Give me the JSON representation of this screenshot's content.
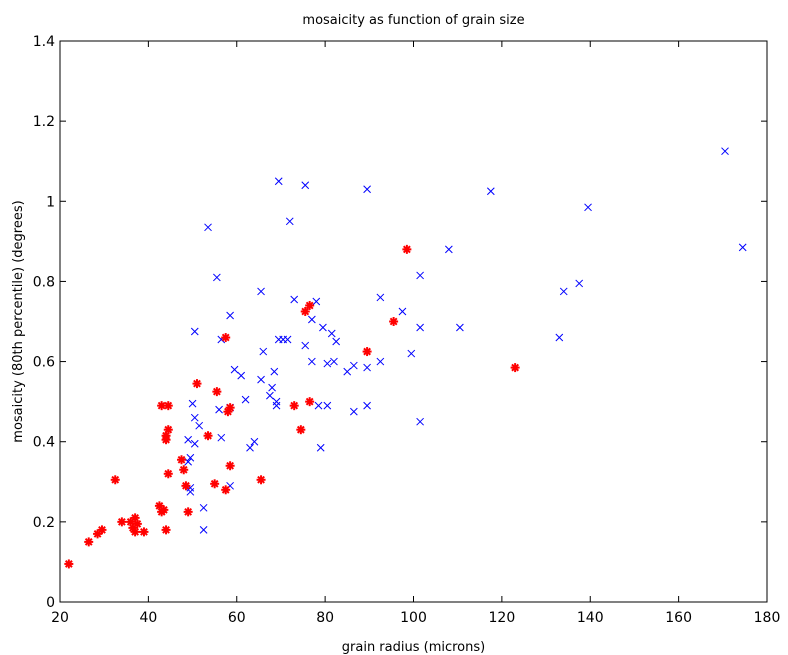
{
  "chart_data": {
    "type": "scatter",
    "title": "mosaicity as function of grain size",
    "xlabel": "grain radius (microns)",
    "ylabel": "mosaicity (80th percentile) (degrees)",
    "xlim": [
      20,
      180
    ],
    "ylim": [
      0,
      1.4
    ],
    "xticks": [
      "20",
      "40",
      "60",
      "80",
      "100",
      "120",
      "140",
      "160",
      "180"
    ],
    "yticks": [
      "0",
      "0.2",
      "0.4",
      "0.6",
      "0.8",
      "1",
      "1.2",
      "1.4"
    ],
    "grid": false,
    "legend": "none",
    "series": [
      {
        "marker": "x",
        "color": "#0000ff",
        "points": [
          [
            69.5,
            1.05
          ],
          [
            75.5,
            1.04
          ],
          [
            89.5,
            1.03
          ],
          [
            117.5,
            1.025
          ],
          [
            170.5,
            1.125
          ],
          [
            139.5,
            0.985
          ],
          [
            72,
            0.95
          ],
          [
            53.5,
            0.935
          ],
          [
            174.5,
            0.885
          ],
          [
            108,
            0.88
          ],
          [
            101.5,
            0.815
          ],
          [
            55.5,
            0.81
          ],
          [
            137.5,
            0.795
          ],
          [
            134,
            0.775
          ],
          [
            65.5,
            0.775
          ],
          [
            92.5,
            0.76
          ],
          [
            73,
            0.755
          ],
          [
            78,
            0.75
          ],
          [
            97.5,
            0.725
          ],
          [
            58.5,
            0.715
          ],
          [
            77,
            0.705
          ],
          [
            79.5,
            0.685
          ],
          [
            101.5,
            0.685
          ],
          [
            110.5,
            0.685
          ],
          [
            50.5,
            0.675
          ],
          [
            81.5,
            0.67
          ],
          [
            133,
            0.66
          ],
          [
            69.5,
            0.655
          ],
          [
            70.5,
            0.655
          ],
          [
            71.5,
            0.655
          ],
          [
            82.5,
            0.65
          ],
          [
            56.5,
            0.655
          ],
          [
            75.5,
            0.64
          ],
          [
            66,
            0.625
          ],
          [
            99.5,
            0.62
          ],
          [
            77,
            0.6
          ],
          [
            82,
            0.6
          ],
          [
            92.5,
            0.6
          ],
          [
            80.5,
            0.595
          ],
          [
            86.5,
            0.59
          ],
          [
            89.5,
            0.585
          ],
          [
            59.5,
            0.58
          ],
          [
            85,
            0.575
          ],
          [
            68.5,
            0.575
          ],
          [
            61,
            0.565
          ],
          [
            65.5,
            0.555
          ],
          [
            68,
            0.535
          ],
          [
            67.5,
            0.515
          ],
          [
            62,
            0.505
          ],
          [
            58.5,
            0.485
          ],
          [
            56,
            0.48
          ],
          [
            69,
            0.5
          ],
          [
            69,
            0.49
          ],
          [
            78.5,
            0.49
          ],
          [
            80.5,
            0.49
          ],
          [
            89.5,
            0.49
          ],
          [
            50,
            0.495
          ],
          [
            86.5,
            0.475
          ],
          [
            50.5,
            0.46
          ],
          [
            51.5,
            0.44
          ],
          [
            101.5,
            0.45
          ],
          [
            56.5,
            0.41
          ],
          [
            49,
            0.405
          ],
          [
            64,
            0.4
          ],
          [
            50.5,
            0.395
          ],
          [
            63,
            0.385
          ],
          [
            79,
            0.385
          ],
          [
            49.5,
            0.36
          ],
          [
            49,
            0.35
          ],
          [
            49.5,
            0.285
          ],
          [
            49.5,
            0.275
          ],
          [
            58.5,
            0.29
          ],
          [
            52.5,
            0.235
          ],
          [
            52.5,
            0.18
          ]
        ]
      },
      {
        "marker": "*",
        "color": "#ff0000",
        "points": [
          [
            98.5,
            0.88
          ],
          [
            76.5,
            0.74
          ],
          [
            75.5,
            0.725
          ],
          [
            95.5,
            0.7
          ],
          [
            57.5,
            0.66
          ],
          [
            89.5,
            0.625
          ],
          [
            123,
            0.585
          ],
          [
            51,
            0.545
          ],
          [
            55.5,
            0.525
          ],
          [
            76.5,
            0.5
          ],
          [
            73,
            0.49
          ],
          [
            43,
            0.49
          ],
          [
            44.5,
            0.49
          ],
          [
            58.5,
            0.485
          ],
          [
            58,
            0.475
          ],
          [
            74.5,
            0.43
          ],
          [
            44.5,
            0.43
          ],
          [
            44,
            0.415
          ],
          [
            53.5,
            0.415
          ],
          [
            44,
            0.405
          ],
          [
            47.5,
            0.355
          ],
          [
            58.5,
            0.34
          ],
          [
            48,
            0.33
          ],
          [
            44.5,
            0.32
          ],
          [
            32.5,
            0.305
          ],
          [
            65.5,
            0.305
          ],
          [
            55,
            0.295
          ],
          [
            48.5,
            0.29
          ],
          [
            57.5,
            0.28
          ],
          [
            42.5,
            0.24
          ],
          [
            43,
            0.225
          ],
          [
            49,
            0.225
          ],
          [
            43.5,
            0.23
          ],
          [
            37,
            0.21
          ],
          [
            36,
            0.2
          ],
          [
            34,
            0.2
          ],
          [
            37.5,
            0.195
          ],
          [
            36.5,
            0.185
          ],
          [
            29.5,
            0.18
          ],
          [
            37,
            0.175
          ],
          [
            39,
            0.175
          ],
          [
            44,
            0.18
          ],
          [
            28.5,
            0.17
          ],
          [
            26.5,
            0.15
          ],
          [
            22,
            0.095
          ]
        ]
      }
    ]
  }
}
